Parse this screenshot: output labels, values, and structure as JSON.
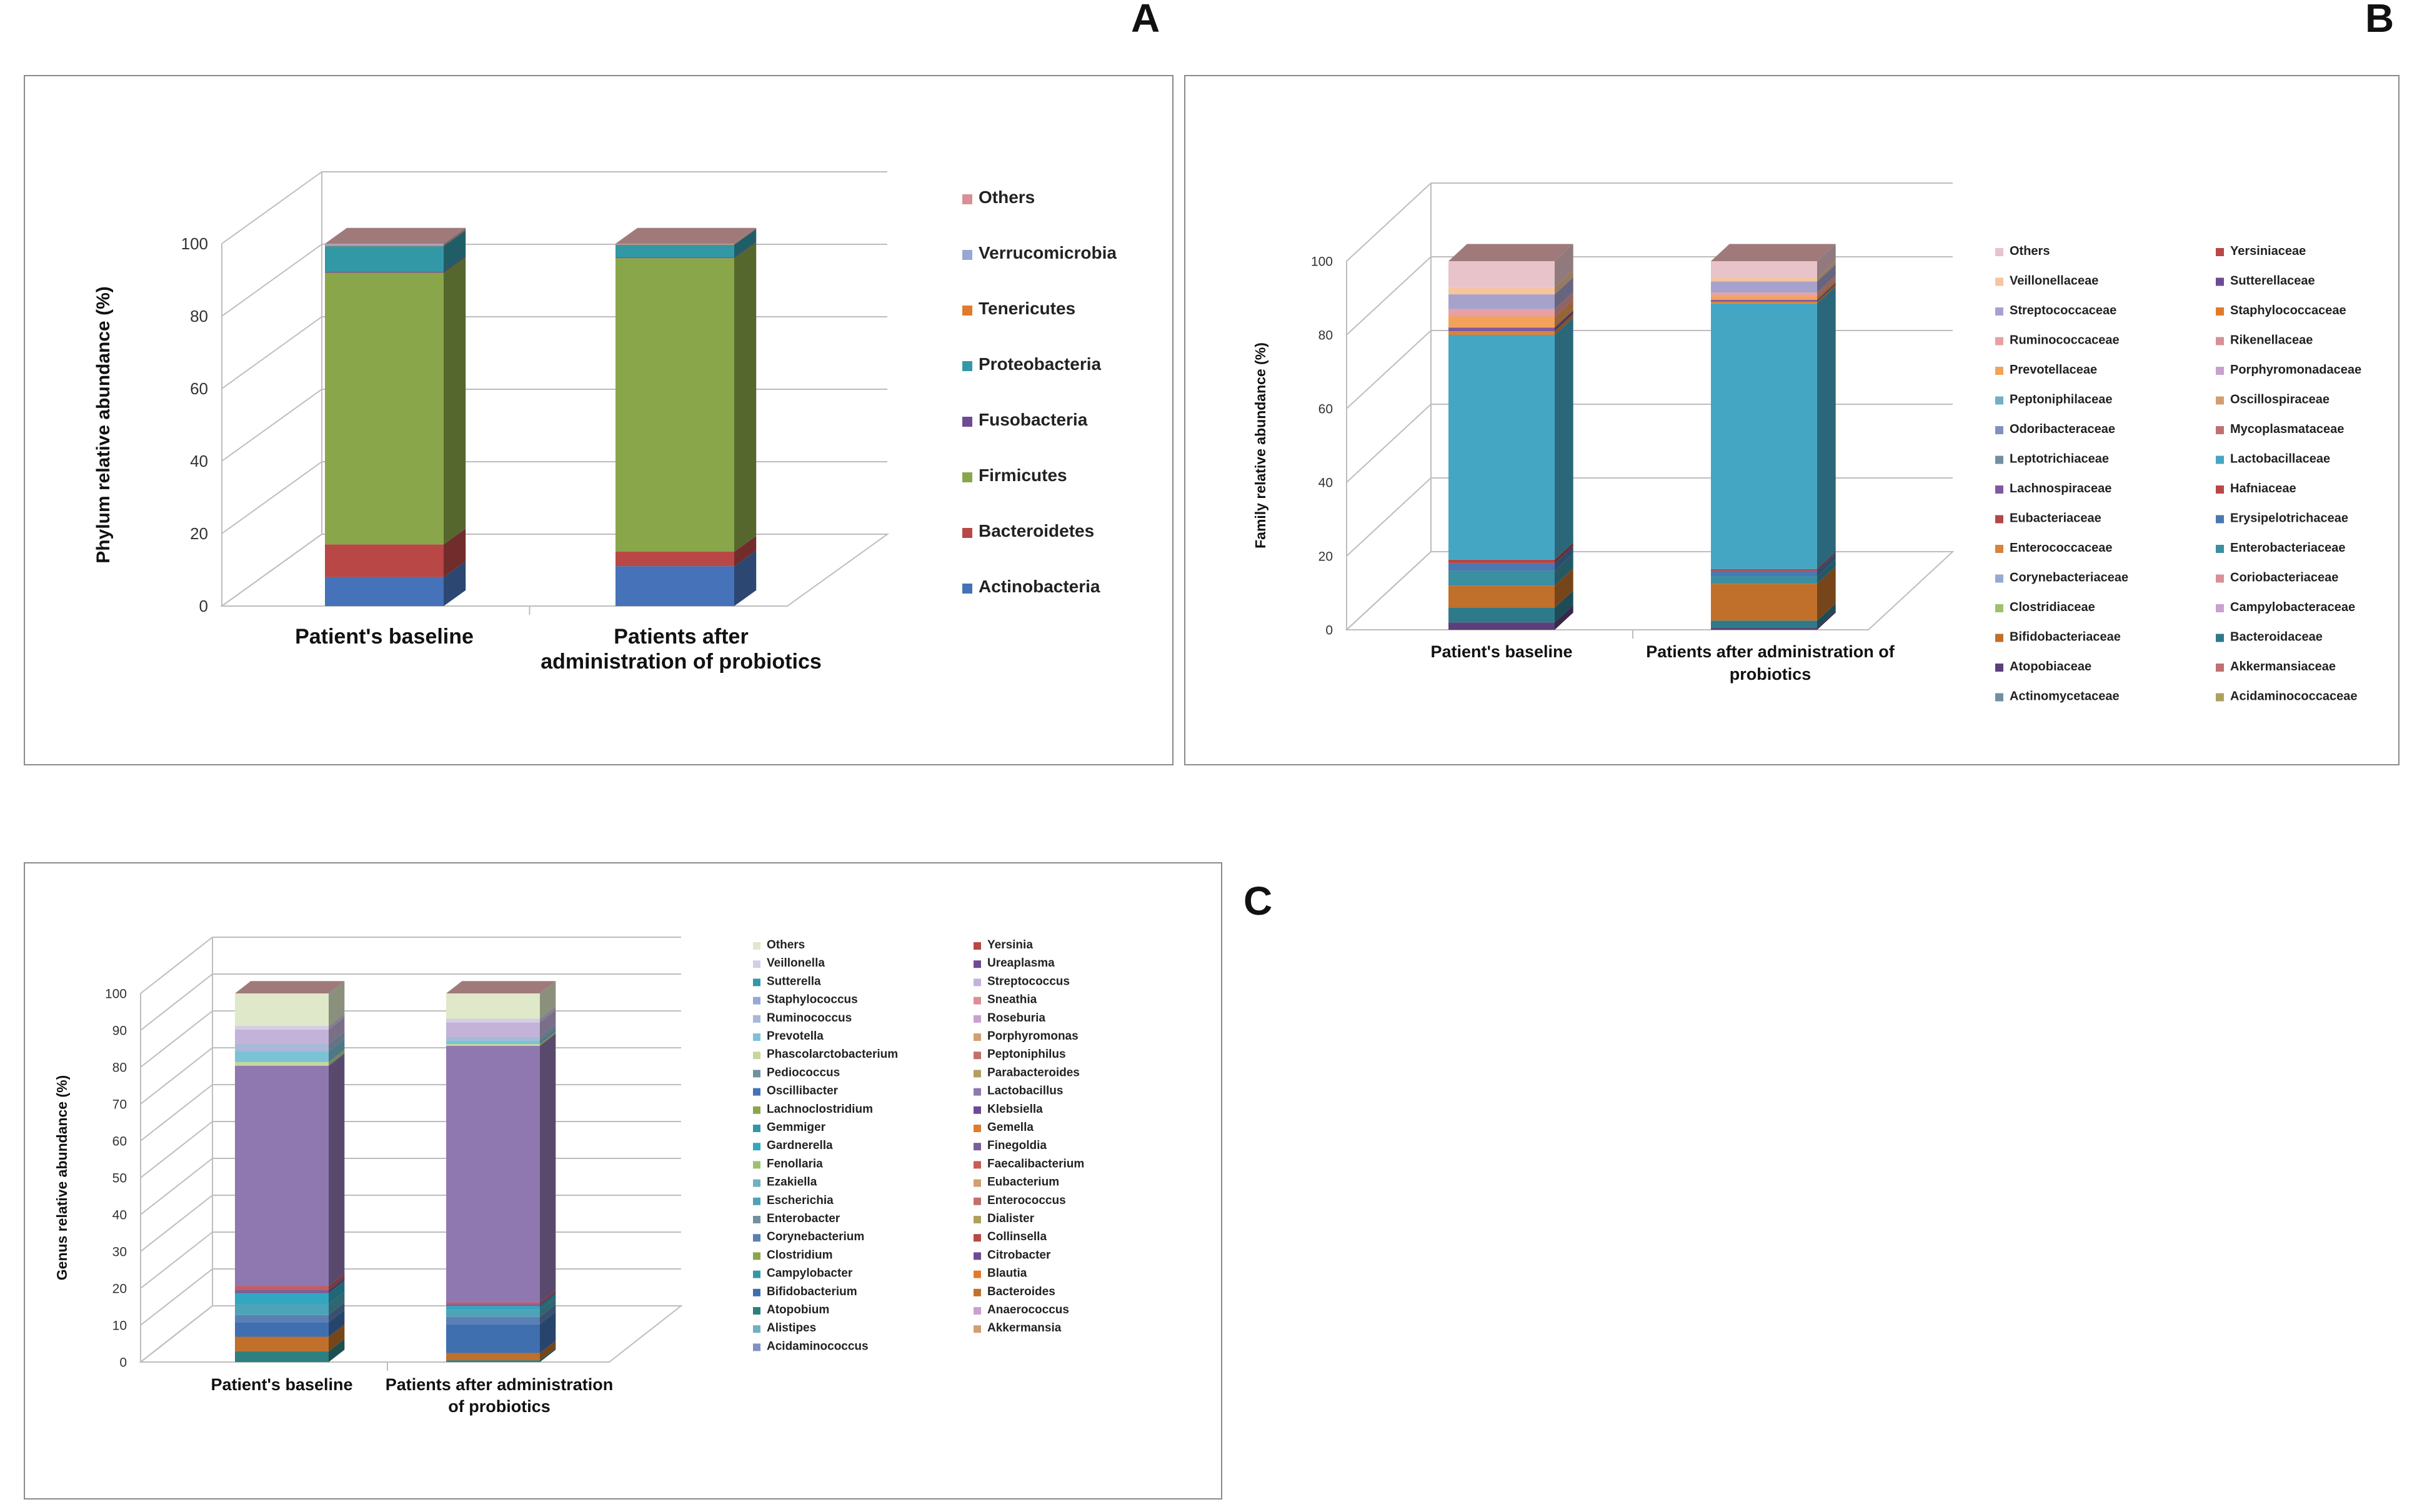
{
  "panel_labels": {
    "a": "A",
    "b": "B",
    "c": "C"
  },
  "colors": {
    "Others": "#d98f96",
    "Verrucomicrobia": "#95a9d2",
    "Tenericutes": "#e07b2c",
    "Proteobacteria": "#3398a6",
    "Fusobacteria": "#6e4a94",
    "Firmicutes": "#8aa64a",
    "Bacteroidetes": "#b84745",
    "Actinobacteria": "#4572b8",
    "top": "#a07a7a",
    "grid": "#bdbdbd"
  },
  "chart_data": [
    {
      "id": "A",
      "type": "bar",
      "stacked": true,
      "title": "",
      "xlabel": "",
      "ylabel": "Phylum relative abundance (%)",
      "ylim": [
        0,
        100
      ],
      "yticks": [
        "0",
        "20",
        "40",
        "60",
        "80",
        "100"
      ],
      "categories": [
        "Patient's baseline",
        "Patients after administration of probiotics"
      ],
      "legend": [
        "Others",
        "Verrucomicrobia",
        "Tenericutes",
        "Proteobacteria",
        "Fusobacteria",
        "Firmicutes",
        "Bacteroidetes",
        "Actinobacteria"
      ],
      "series": [
        {
          "name": "Actinobacteria",
          "color": "#4572b8",
          "values": [
            8,
            11
          ]
        },
        {
          "name": "Bacteroidetes",
          "color": "#b84745",
          "values": [
            9,
            4
          ]
        },
        {
          "name": "Firmicutes",
          "color": "#8aa64a",
          "values": [
            75,
            81
          ]
        },
        {
          "name": "Fusobacteria",
          "color": "#6e4a94",
          "values": [
            0.3,
            0.2
          ]
        },
        {
          "name": "Proteobacteria",
          "color": "#3398a6",
          "values": [
            7,
            3.5
          ]
        },
        {
          "name": "Tenericutes",
          "color": "#e07b2c",
          "values": [
            0.2,
            0.1
          ]
        },
        {
          "name": "Verrucomicrobia",
          "color": "#95a9d2",
          "values": [
            0.3,
            0.1
          ]
        },
        {
          "name": "Others",
          "color": "#d98f96",
          "values": [
            0.2,
            0.1
          ]
        }
      ]
    },
    {
      "id": "B",
      "type": "bar",
      "stacked": true,
      "title": "",
      "xlabel": "",
      "ylabel": "Family relative abundance (%)",
      "ylim": [
        0,
        100
      ],
      "yticks": [
        "0",
        "20",
        "40",
        "60",
        "80",
        "100"
      ],
      "categories": [
        "Patient's baseline",
        "Patients after administration of probiotics"
      ],
      "legend": [
        "Others",
        "Yersiniaceae",
        "Veillonellaceae",
        "Sutterellaceae",
        "Streptococcaceae",
        "Staphylococcaceae",
        "Ruminococcaceae",
        "Rikenellaceae",
        "Prevotellaceae",
        "Porphyromonadaceae",
        "Peptoniphilaceae",
        "Oscillospiraceae",
        "Odoribacteraceae",
        "Mycoplasmataceae",
        "Leptotrichiaceae",
        "Lactobacillaceae",
        "Lachnospiraceae",
        "Hafniaceae",
        "Eubacteriaceae",
        "Erysipelotrichaceae",
        "Enterococcaceae",
        "Enterobacteriaceae",
        "Corynebacteriaceae",
        "Coriobacteriaceae",
        "Clostridiaceae",
        "Campylobacteraceae",
        "Bifidobacteriaceae",
        "Bacteroidaceae",
        "Atopobiaceae",
        "Akkermansiaceae",
        "Actinomycetaceae",
        "Acidaminococcaceae"
      ],
      "series": [
        {
          "name": "Atopobiaceae",
          "color": "#5c3f7a",
          "values": [
            2,
            0.5
          ]
        },
        {
          "name": "Bacteroidaceae",
          "color": "#2f7a8a",
          "values": [
            4,
            2
          ]
        },
        {
          "name": "Bifidobacteriaceae",
          "color": "#c0702a",
          "values": [
            6,
            10
          ]
        },
        {
          "name": "Enterobacteriaceae",
          "color": "#3a8fa0",
          "values": [
            4,
            2
          ]
        },
        {
          "name": "Erysipelotrichaceae",
          "color": "#4a78b0",
          "values": [
            2,
            1.5
          ]
        },
        {
          "name": "Eubacteriaceae",
          "color": "#b04848",
          "values": [
            1,
            0.5
          ]
        },
        {
          "name": "Lactobacillaceae",
          "color": "#45a6c4",
          "values": [
            61,
            72
          ]
        },
        {
          "name": "Enterococcaceae",
          "color": "#d7843c",
          "values": [
            1,
            0.5
          ]
        },
        {
          "name": "Lachnospiraceae",
          "color": "#7d5a9e",
          "values": [
            1,
            0.5
          ]
        },
        {
          "name": "Prevotellaceae",
          "color": "#f3a25c",
          "values": [
            3,
            1
          ]
        },
        {
          "name": "Ruminococcaceae",
          "color": "#e8a0a4",
          "values": [
            2,
            1
          ]
        },
        {
          "name": "Streptococcaceae",
          "color": "#a6a2cc",
          "values": [
            4,
            3
          ]
        },
        {
          "name": "Veillonellaceae",
          "color": "#f5c5a0",
          "values": [
            2,
            1
          ]
        },
        {
          "name": "Others",
          "color": "#e8c4ca",
          "values": [
            7,
            4.5
          ]
        }
      ]
    },
    {
      "id": "C",
      "type": "bar",
      "stacked": true,
      "title": "",
      "xlabel": "",
      "ylabel": "Genus relative abundance (%)",
      "ylim": [
        0,
        100
      ],
      "yticks": [
        "0",
        "10",
        "20",
        "30",
        "40",
        "50",
        "60",
        "70",
        "80",
        "90",
        "100"
      ],
      "categories": [
        "Patient's baseline",
        "Patients after administration of probiotics"
      ],
      "legend": [
        "Others",
        "Yersinia",
        "Veillonella",
        "Ureaplasma",
        "Sutterella",
        "Streptococcus",
        "Staphylococcus",
        "Sneathia",
        "Ruminococcus",
        "Roseburia",
        "Prevotella",
        "Porphyromonas",
        "Phascolarctobacterium",
        "Peptoniphilus",
        "Pediococcus",
        "Parabacteroides",
        "Oscillibacter",
        "Lactobacillus",
        "Lachnoclostridium",
        "Klebsiella",
        "Gemmiger",
        "Gemella",
        "Gardnerella",
        "Finegoldia",
        "Fenollaria",
        "Faecalibacterium",
        "Ezakiella",
        "Eubacterium",
        "Escherichia",
        "Enterococcus",
        "Enterobacter",
        "Dialister",
        "Corynebacterium",
        "Collinsella",
        "Clostridium",
        "Citrobacter",
        "Campylobacter",
        "Blautia",
        "Bifidobacterium",
        "Bacteroides",
        "Atopobium",
        "Anaerococcus",
        "Alistipes",
        "Akkermansia",
        "Acidaminococcus"
      ],
      "series": [
        {
          "name": "Atopobium",
          "color": "#2e7f7f",
          "values": [
            3,
            0.5
          ]
        },
        {
          "name": "Bacteroides",
          "color": "#c0702a",
          "values": [
            4,
            2
          ]
        },
        {
          "name": "Bifidobacterium",
          "color": "#3f6fae",
          "values": [
            4,
            8
          ]
        },
        {
          "name": "Corynebacterium",
          "color": "#5b7fb5",
          "values": [
            2,
            2
          ]
        },
        {
          "name": "Escherichia",
          "color": "#4da3b8",
          "values": [
            3,
            2
          ]
        },
        {
          "name": "Gardnerella",
          "color": "#31a7c0",
          "values": [
            3,
            1
          ]
        },
        {
          "name": "Finegoldia",
          "color": "#7a5e9a",
          "values": [
            1,
            0.5
          ]
        },
        {
          "name": "Faecalibacterium",
          "color": "#c95a5a",
          "values": [
            1,
            0.5
          ]
        },
        {
          "name": "Lactobacillus",
          "color": "#8f78b0",
          "values": [
            61,
            71
          ]
        },
        {
          "name": "Phascolarctobacterium",
          "color": "#c5d79a",
          "values": [
            1,
            0.5
          ]
        },
        {
          "name": "Prevotella",
          "color": "#7cc2d6",
          "values": [
            3,
            1
          ]
        },
        {
          "name": "Ruminococcus",
          "color": "#a8b8d8",
          "values": [
            2,
            1
          ]
        },
        {
          "name": "Streptococcus",
          "color": "#c3b3d8",
          "values": [
            4,
            4
          ]
        },
        {
          "name": "Veillonella",
          "color": "#d4cde6",
          "values": [
            1,
            1
          ]
        },
        {
          "name": "Others",
          "color": "#dfe8c8",
          "values": [
            9,
            7
          ]
        }
      ]
    }
  ]
}
